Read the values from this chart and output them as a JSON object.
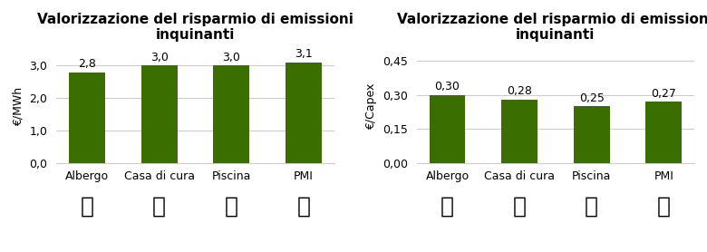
{
  "chart1": {
    "title": "Valorizzazione del risparmio di emissioni\ninquinanti",
    "categories": [
      "Albergo",
      "Casa di cura",
      "Piscina",
      "PMI"
    ],
    "values": [
      2.8,
      3.0,
      3.0,
      3.1
    ],
    "ylabel": "€/MWh",
    "ylim": [
      0,
      3.5
    ],
    "yticks": [
      0.0,
      1.0,
      2.0,
      3.0
    ],
    "ytick_labels": [
      "0,0",
      "1,0",
      "2,0",
      "3,0"
    ],
    "bar_color": "#3a6e00",
    "value_labels": [
      "2,8",
      "3,0",
      "3,0",
      "3,1"
    ]
  },
  "chart2": {
    "title": "Valorizzazione del risparmio di emissioni\ninquinanti",
    "categories": [
      "Albergo",
      "Casa di cura",
      "Piscina",
      "PMI"
    ],
    "values": [
      0.3,
      0.28,
      0.25,
      0.27
    ],
    "ylabel": "€/Capex",
    "ylim": [
      0,
      0.5
    ],
    "yticks": [
      0.0,
      0.15,
      0.3,
      0.45
    ],
    "ytick_labels": [
      "0,00",
      "0,15",
      "0,30",
      "0,45"
    ],
    "bar_color": "#3a6e00",
    "value_labels": [
      "0,30",
      "0,28",
      "0,25",
      "0,27"
    ]
  },
  "bg_color": "#ffffff",
  "title_fontsize": 11,
  "label_fontsize": 9,
  "tick_fontsize": 9,
  "value_fontsize": 9,
  "grid_color": "#cccccc"
}
